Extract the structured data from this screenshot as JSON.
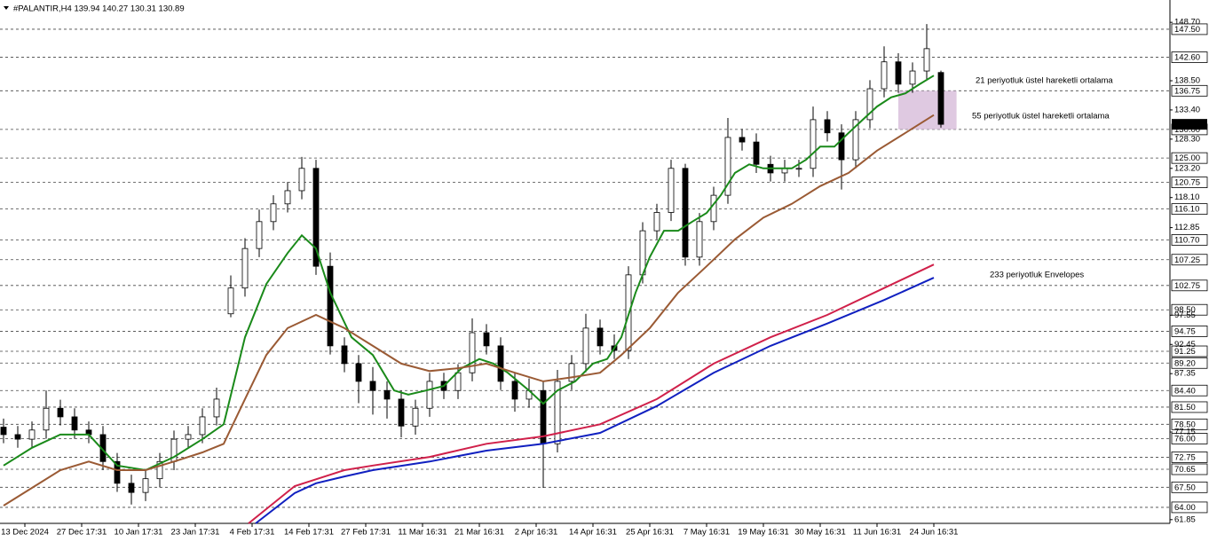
{
  "chart_data": {
    "type": "candlestick",
    "title": "#PALANTIR,H4  139.94 140.27 130.31 130.89",
    "xlim": [
      -0.25,
      82.125
    ],
    "ylim": [
      61.2,
      152.6
    ],
    "up_color": "#ffffff",
    "down_color": "#000000",
    "ohlc": [
      [
        78,
        79.5,
        75.2,
        76.7
      ],
      [
        76.7,
        78.2,
        74.4,
        75.9
      ],
      [
        75.9,
        79,
        74.4,
        77.5
      ],
      [
        77.5,
        84.4,
        76,
        81.3
      ],
      [
        81.3,
        82.8,
        78.3,
        79.8
      ],
      [
        79.8,
        81.3,
        76,
        77.5
      ],
      [
        77.5,
        79,
        75.2,
        76.7
      ],
      [
        76.7,
        78.2,
        70.5,
        72.0
      ],
      [
        72.0,
        73.5,
        66.7,
        68.2
      ],
      [
        68.2,
        69.7,
        64.5,
        66.6
      ],
      [
        66.6,
        70.5,
        65.1,
        69.0
      ],
      [
        69.0,
        73.5,
        67.5,
        72.0
      ],
      [
        72.0,
        77.4,
        70.5,
        75.9
      ],
      [
        75.9,
        78.2,
        74.4,
        76.7
      ],
      [
        76.7,
        81.3,
        75.2,
        79.8
      ],
      [
        79.8,
        84.9,
        78.3,
        82.9
      ],
      [
        97.8,
        104.5,
        97.2,
        102.3
      ],
      [
        102.3,
        111,
        100.8,
        109.2
      ],
      [
        109.2,
        116,
        107.7,
        113.9
      ],
      [
        113.9,
        118.5,
        112.4,
        117.0
      ],
      [
        117.0,
        120.8,
        115.5,
        119.3
      ],
      [
        119.3,
        125.2,
        117.8,
        123.2
      ],
      [
        123.2,
        124.7,
        104.6,
        106.1
      ],
      [
        106.1,
        108.5,
        90.7,
        92.2
      ],
      [
        92.2,
        93.7,
        87.6,
        89.1
      ],
      [
        89.1,
        90.6,
        82.2,
        86.0
      ],
      [
        86.0,
        88.5,
        80.2,
        84.4
      ],
      [
        84.4,
        86.0,
        79.5,
        82.9
      ],
      [
        82.9,
        84.4,
        76.2,
        78.2
      ],
      [
        78.2,
        82.8,
        76.7,
        81.3
      ],
      [
        81.3,
        87.5,
        79.8,
        86.0
      ],
      [
        86.0,
        87.5,
        82.9,
        84.4
      ],
      [
        84.4,
        89.0,
        82.9,
        87.5
      ],
      [
        87.5,
        97.0,
        86.0,
        94.5
      ],
      [
        94.5,
        96.0,
        90.7,
        92.2
      ],
      [
        92.2,
        93.7,
        84.5,
        86.0
      ],
      [
        86.0,
        87.5,
        80.7,
        82.9
      ],
      [
        82.9,
        86.5,
        81.4,
        84.4
      ],
      [
        84.4,
        85.9,
        67.4,
        75.1
      ],
      [
        75.1,
        88.0,
        73.6,
        86.0
      ],
      [
        86.0,
        90.6,
        84.5,
        89.1
      ],
      [
        89.1,
        97.8,
        87.6,
        95.3
      ],
      [
        95.3,
        96.8,
        90.7,
        92.2
      ],
      [
        92.2,
        94.2,
        89.9,
        91.4
      ],
      [
        91.4,
        106.1,
        89.9,
        104.6
      ],
      [
        104.6,
        113.8,
        103.1,
        112.3
      ],
      [
        112.3,
        117.0,
        110.8,
        115.5
      ],
      [
        115.5,
        124.7,
        114.0,
        123.2
      ],
      [
        123.2,
        124.0,
        106.2,
        107.7
      ],
      [
        107.7,
        115.4,
        106.2,
        113.9
      ],
      [
        113.9,
        120.0,
        112.4,
        118.5
      ],
      [
        118.5,
        132.0,
        117.0,
        128.6
      ],
      [
        128.6,
        130.1,
        126.3,
        127.8
      ],
      [
        127.8,
        129.3,
        122.4,
        123.9
      ],
      [
        123.9,
        125.4,
        120.9,
        122.4
      ],
      [
        122.4,
        124.7,
        120.9,
        123.2
      ],
      [
        123.2,
        124.7,
        121.7,
        123.2
      ],
      [
        123.2,
        134.0,
        121.7,
        131.7
      ],
      [
        131.7,
        133.2,
        127.9,
        129.4
      ],
      [
        129.4,
        130.9,
        119.5,
        124.7
      ],
      [
        124.7,
        133.2,
        123.2,
        131.7
      ],
      [
        131.7,
        138.6,
        130.2,
        137.1
      ],
      [
        137.1,
        144.5,
        135.6,
        141.8
      ],
      [
        141.8,
        143.3,
        136.4,
        137.9
      ],
      [
        137.9,
        141.7,
        136.4,
        140.2
      ],
      [
        140.2,
        148.4,
        138.7,
        144.1
      ],
      [
        139.94,
        140.27,
        130.31,
        130.89
      ]
    ],
    "series": [
      {
        "name": "21 periyotluk üstel hareketli ortalama",
        "color": "#1a8a1a",
        "x": [
          0,
          2,
          4,
          6,
          8,
          10,
          12,
          14,
          15.5,
          17,
          18.5,
          20,
          21,
          22,
          23,
          24.5,
          26,
          27.5,
          28.5,
          29.75,
          31,
          32.25,
          33.5,
          34.5,
          35.5,
          37,
          38,
          39,
          40.25,
          41.5,
          42.5,
          43.5,
          44.5,
          45.5,
          46.5,
          47.5,
          48.5,
          49.5,
          50.5,
          51.5,
          52.5,
          53.5,
          54.5,
          55.5,
          56.5,
          57.5,
          58.5,
          59.5,
          60.5,
          61.5,
          62.5,
          63.5,
          64.5,
          65.5
        ],
        "values": [
          71.3,
          74.4,
          76.7,
          76.7,
          71.3,
          70.5,
          72.8,
          75.9,
          78.5,
          93.7,
          103.0,
          108.4,
          111.5,
          109.2,
          101.5,
          93.7,
          90.6,
          84.4,
          83.7,
          84.4,
          85.2,
          88.3,
          89.9,
          89.1,
          87.5,
          84.4,
          82.1,
          84.4,
          86.0,
          89.1,
          89.9,
          93.7,
          101.5,
          107.7,
          112.3,
          112.3,
          113.9,
          115.4,
          118.5,
          122.4,
          123.9,
          123.2,
          123.2,
          123.2,
          124.7,
          127.0,
          127.0,
          129.4,
          131.7,
          134.0,
          135.6,
          136.3,
          137.9,
          139.4
        ]
      },
      {
        "name": "55 periyotluk üstel hareketli ortalama",
        "color": "#9a5a34",
        "x": [
          0,
          2,
          4,
          6,
          8,
          10,
          12,
          14,
          15.5,
          17,
          18.5,
          20,
          22,
          24,
          26,
          28,
          30,
          32,
          34,
          36,
          38,
          40,
          42,
          43.5,
          45.5,
          47.5,
          49.5,
          51.5,
          53.5,
          55.5,
          57.5,
          59.5,
          61.5,
          63.5,
          65.5
        ],
        "values": [
          64.3,
          67.4,
          70.5,
          72.0,
          70.5,
          70.5,
          72.0,
          73.6,
          75.1,
          82.9,
          90.6,
          95.3,
          97.6,
          95.3,
          92.2,
          89.1,
          87.8,
          88.3,
          89.1,
          87.5,
          86.0,
          86.7,
          87.5,
          90.6,
          95.3,
          101.5,
          106.1,
          110.8,
          114.6,
          117.0,
          120.1,
          122.4,
          126.3,
          129.4,
          132.5
        ]
      },
      {
        "name": "233 periyotluk Envelopes",
        "color": "#d0204a",
        "x": [
          17.25,
          20.5,
          22,
          24,
          26,
          30,
          34,
          38,
          42,
          46,
          50,
          54,
          58,
          62,
          65.5
        ],
        "values": [
          61.2,
          67.7,
          68.9,
          70.5,
          71.3,
          72.8,
          75.1,
          76.4,
          78.5,
          82.9,
          89.1,
          93.7,
          97.6,
          102.3,
          106.4
        ]
      },
      {
        "color": "#1020c0",
        "x": [
          17.75,
          20.5,
          22,
          24,
          26,
          30,
          34,
          38,
          42,
          46,
          50,
          54,
          58,
          62,
          65.5
        ],
        "values": [
          61.2,
          66.5,
          68.2,
          69.4,
          70.5,
          72.0,
          73.9,
          75.1,
          77.0,
          81.7,
          87.5,
          92.2,
          96.1,
          100.2,
          104.1
        ]
      }
    ],
    "highlight": {
      "x": [
        63,
        67.1
      ],
      "y": [
        130.0,
        136.75
      ],
      "color": "#d9bfdc"
    },
    "last_price": 130.89,
    "levels": [
      {
        "value": 147.5,
        "label": "147.50"
      },
      {
        "value": 142.6,
        "label": "142.60"
      },
      {
        "value": 136.75,
        "label": "136.75"
      },
      {
        "value": 130,
        "label": "130.00"
      },
      {
        "value": 125,
        "label": "125.00"
      },
      {
        "value": 120.75,
        "label": "120.75"
      },
      {
        "value": 116.1,
        "label": "116.10"
      },
      {
        "value": 110.7,
        "label": "110.70"
      },
      {
        "value": 107.25,
        "label": "107.25"
      },
      {
        "value": 102.75,
        "label": "102.75"
      },
      {
        "value": 98.5,
        "label": "98.50"
      },
      {
        "value": 94.75,
        "label": "94.75"
      },
      {
        "value": 91.25,
        "label": "91.25"
      },
      {
        "value": 89.2,
        "label": "89.20"
      },
      {
        "value": 84.4,
        "label": "84.40"
      },
      {
        "value": 81.5,
        "label": "81.50"
      },
      {
        "value": 78.5,
        "label": "78.50"
      },
      {
        "value": 76,
        "label": "76.00"
      },
      {
        "value": 72.75,
        "label": "72.75"
      },
      {
        "value": 70.65,
        "label": "70.65"
      },
      {
        "value": 67.5,
        "label": "67.50"
      },
      {
        "value": 64,
        "label": "64.00"
      }
    ],
    "yticks": [
      {
        "value": 148.7,
        "label": "148.70"
      },
      {
        "value": 138.5,
        "label": "138.50"
      },
      {
        "value": 133.4,
        "label": "133.40"
      },
      {
        "value": 128.3,
        "label": "128.30"
      },
      {
        "value": 123.2,
        "label": "123.20"
      },
      {
        "value": 118.1,
        "label": "118.10"
      },
      {
        "value": 112.85,
        "label": "112.85"
      },
      {
        "value": 97.55,
        "label": "97.55"
      },
      {
        "value": 92.45,
        "label": "92.45"
      },
      {
        "value": 87.35,
        "label": "87.35"
      },
      {
        "value": 77.15,
        "label": "77.15"
      },
      {
        "value": 61.85,
        "label": "61.85"
      }
    ],
    "xticks": [
      {
        "value": 1.5,
        "label": "13 Dec 2024"
      },
      {
        "value": 5.5,
        "label": "27 Dec 17:31"
      },
      {
        "value": 9.5,
        "label": "10 Jan 17:31"
      },
      {
        "value": 13.5,
        "label": "23 Jan 17:31"
      },
      {
        "value": 17.5,
        "label": "4 Feb 17:31"
      },
      {
        "value": 21.5,
        "label": "14 Feb 17:31"
      },
      {
        "value": 25.5,
        "label": "27 Feb 17:31"
      },
      {
        "value": 29.5,
        "label": "11 Mar 16:31"
      },
      {
        "value": 33.5,
        "label": "21 Mar 16:31"
      },
      {
        "value": 37.5,
        "label": "2 Apr 16:31"
      },
      {
        "value": 41.5,
        "label": "14 Apr 16:31"
      },
      {
        "value": 45.5,
        "label": "25 Apr 16:31"
      },
      {
        "value": 49.5,
        "label": "7 May 16:31"
      },
      {
        "value": 53.5,
        "label": "19 May 16:31"
      },
      {
        "value": 57.5,
        "label": "30 May 16:31"
      },
      {
        "value": 61.5,
        "label": "11 Jun 16:31"
      },
      {
        "value": 65.5,
        "label": "24 Jun 16:31"
      }
    ],
    "annotations": [
      "21 periyotluk üstel hareketli ortalama",
      "55 periyotluk üstel hareketli ortalama",
      "233 periyotluk Envelopes"
    ]
  }
}
